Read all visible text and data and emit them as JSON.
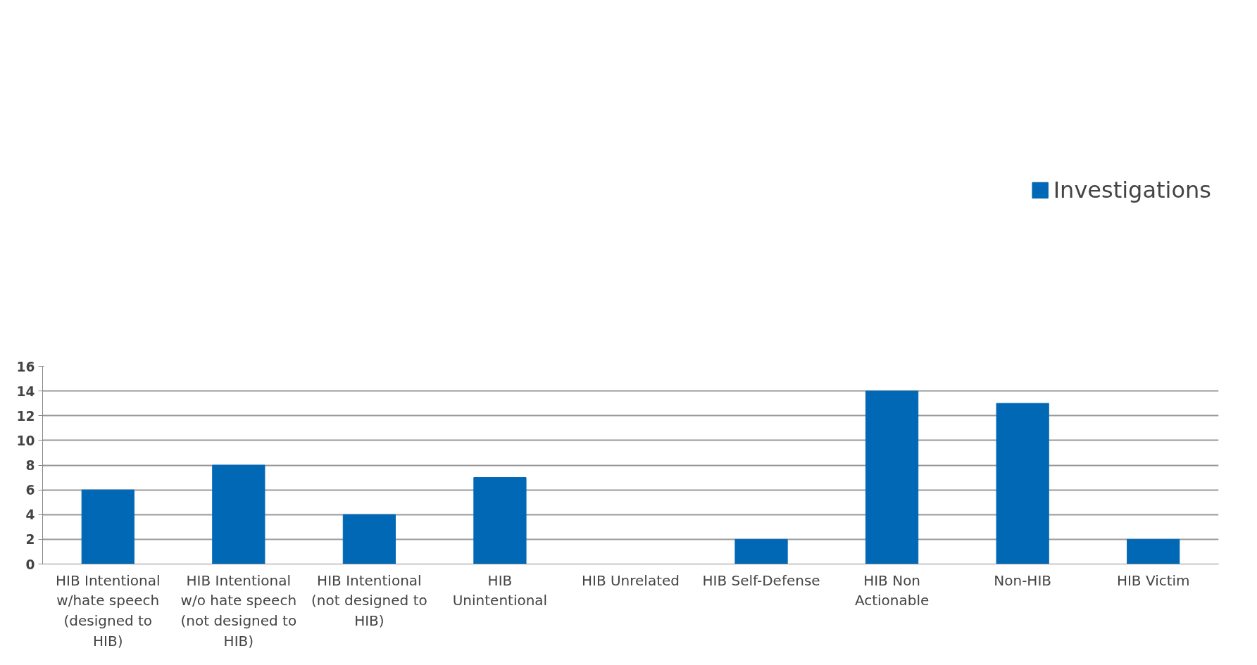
{
  "chart_data": {
    "type": "bar",
    "categories": [
      "HIB Intentional w/hate speech (designed to HIB)",
      "HIB Intentional w/o hate speech (not designed to HIB)",
      "HIB Intentional (not designed to HIB)",
      "HIB Unintentional",
      "HIB Unrelated",
      "HIB Self-Defense",
      "HIB Non Actionable",
      "Non-HIB",
      "HIB Victim"
    ],
    "series": [
      {
        "name": "Investigations",
        "color": "#0068b5",
        "values": [
          6,
          8,
          4,
          7,
          0,
          2,
          14,
          13,
          2
        ]
      }
    ],
    "ylim": [
      0,
      16
    ],
    "yticks": [
      0,
      2,
      4,
      6,
      8,
      10,
      12,
      14,
      16
    ],
    "grid": "y",
    "legend": "top right"
  }
}
